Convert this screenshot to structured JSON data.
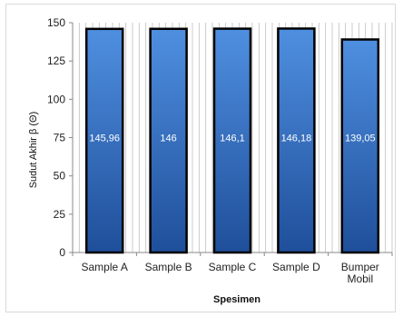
{
  "chart_data": {
    "type": "bar",
    "categories": [
      "Sample A",
      "Sample B",
      "Sample C",
      "Sample D",
      "Bumper Mobil"
    ],
    "values": [
      145.96,
      146,
      146.1,
      146.18,
      139.05
    ],
    "data_labels": [
      "145,96",
      "146",
      "146,1",
      "146,18",
      "139,05"
    ],
    "title": "",
    "xlabel": "Spesimen",
    "ylabel": "Sudut Akhir β (Θ)",
    "ylim": [
      0,
      150
    ],
    "yticks": [
      0,
      25,
      50,
      75,
      100,
      125,
      150
    ],
    "grid": "vertical",
    "legend": "none",
    "colors": {
      "bar_top": "#4f8fe0",
      "bar_bottom": "#1f4f9a",
      "bar_edge": "#000000",
      "grid": "#bfbfbf"
    }
  }
}
